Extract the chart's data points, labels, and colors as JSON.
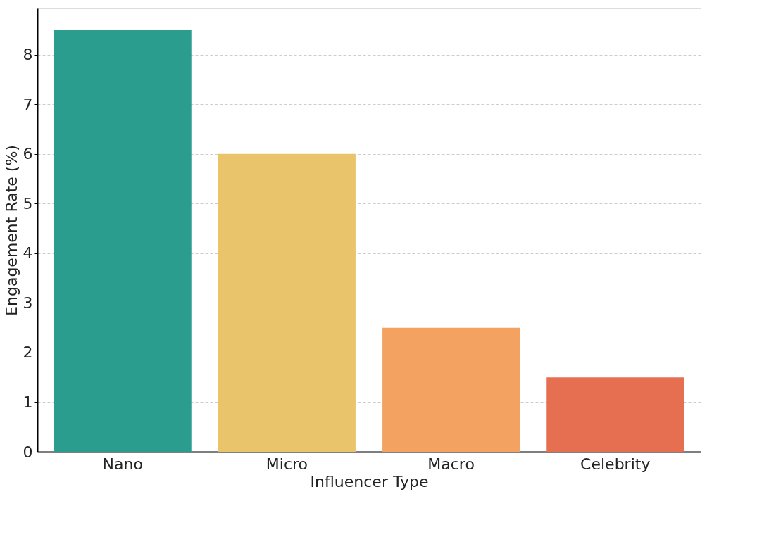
{
  "chart_data": {
    "type": "bar",
    "xlabel": "Influencer Type",
    "ylabel": "Engagement Rate (%)",
    "categories": [
      "Nano",
      "Micro",
      "Macro",
      "Celebrity"
    ],
    "values": [
      8.5,
      6,
      2.5,
      1.5
    ],
    "colors": [
      "#2a9d8f",
      "#e9c46a",
      "#f4a261",
      "#e76f51"
    ],
    "ylim": [
      0,
      8.93
    ],
    "yticks": [
      0,
      1,
      2,
      3,
      4,
      5,
      6,
      7,
      8
    ],
    "grid": true
  }
}
